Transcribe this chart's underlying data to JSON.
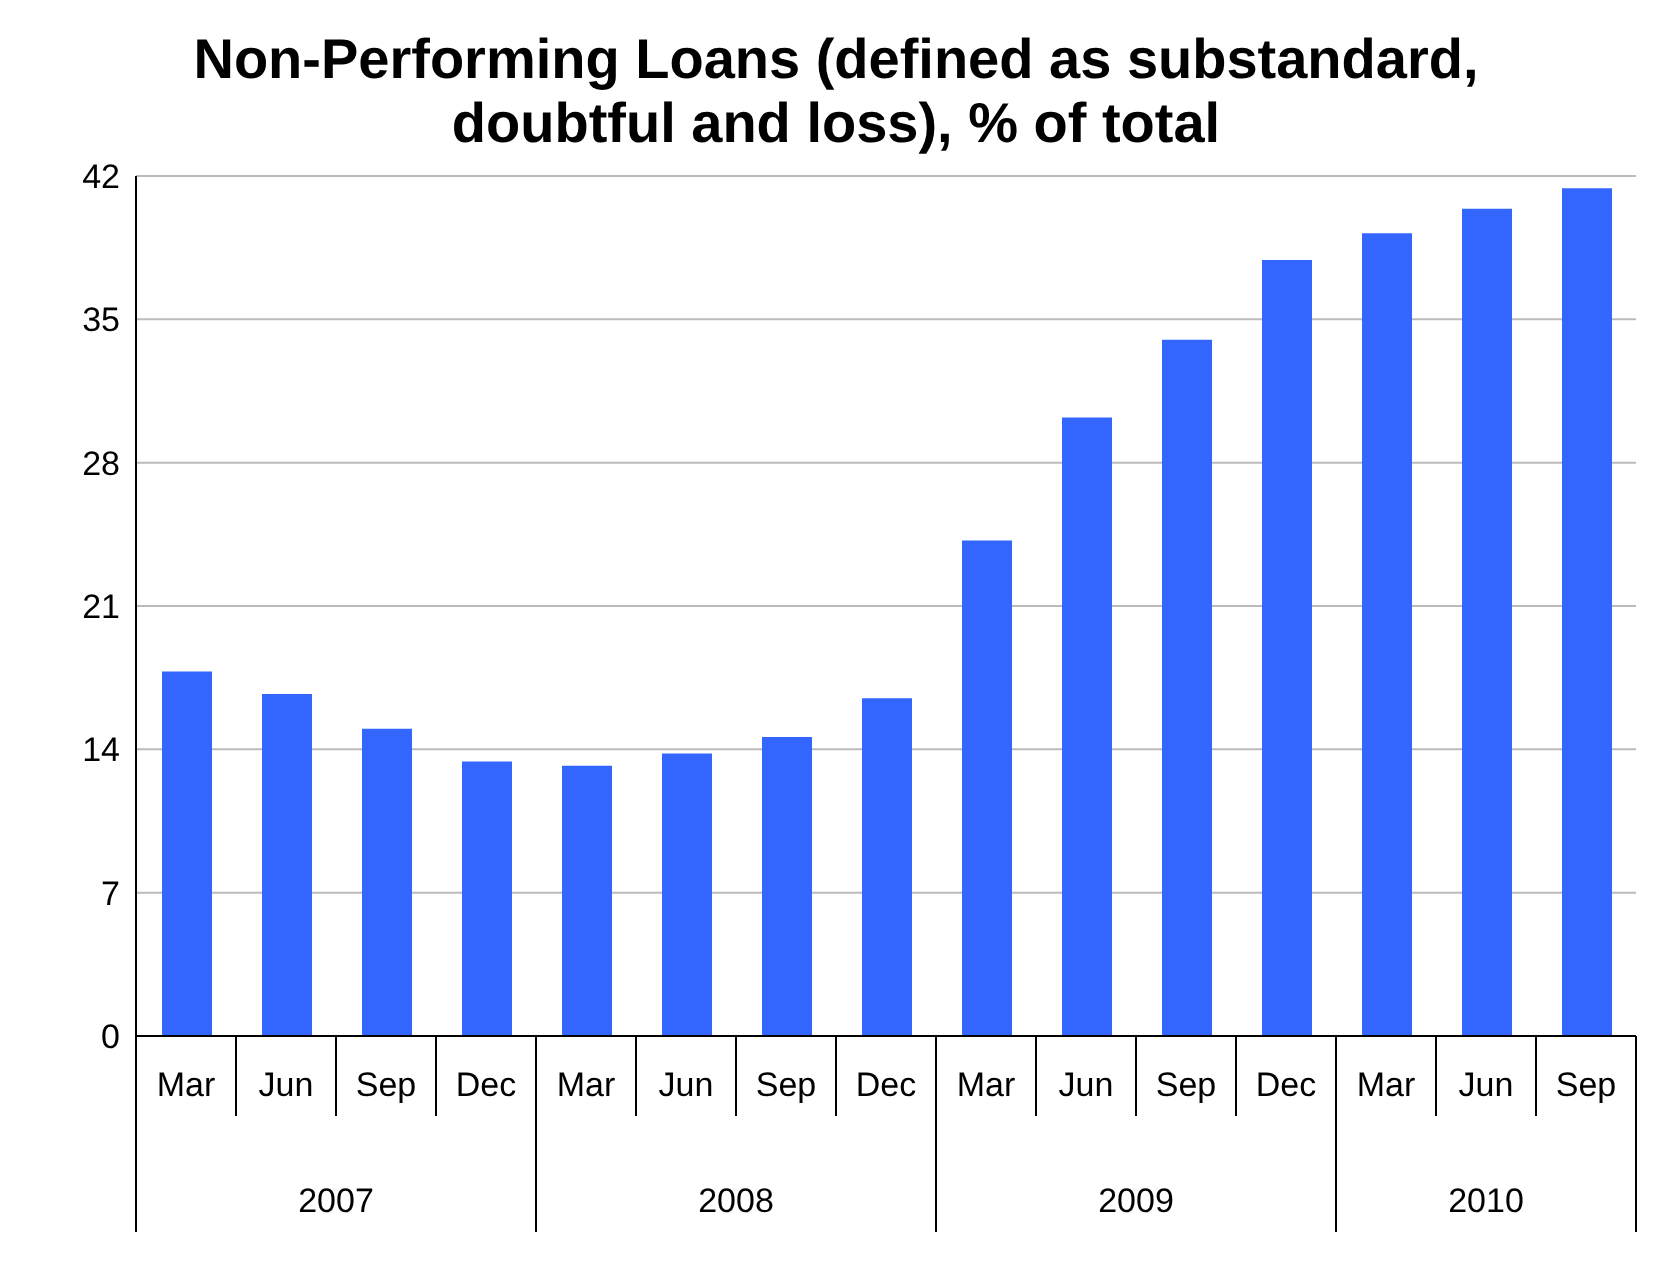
{
  "chart_data": {
    "type": "bar",
    "title": "Non-Performing Loans (defined as substandard, doubtful and loss), % of total",
    "categories": [
      "Mar",
      "Jun",
      "Sep",
      "Dec",
      "Mar",
      "Jun",
      "Sep",
      "Dec",
      "Mar",
      "Jun",
      "Sep",
      "Dec",
      "Mar",
      "Jun",
      "Sep"
    ],
    "values": [
      17.8,
      16.7,
      15.0,
      13.4,
      13.2,
      13.8,
      14.6,
      16.5,
      24.2,
      30.2,
      34.0,
      37.9,
      39.2,
      40.4,
      41.4
    ],
    "color": "#3366ff",
    "annotations": [
      "2007",
      "2008",
      "2009",
      "2010"
    ],
    "ylim": [
      0,
      42
    ],
    "yticks": [
      0,
      7,
      14,
      21,
      28,
      35,
      42
    ],
    "grid": "y"
  }
}
